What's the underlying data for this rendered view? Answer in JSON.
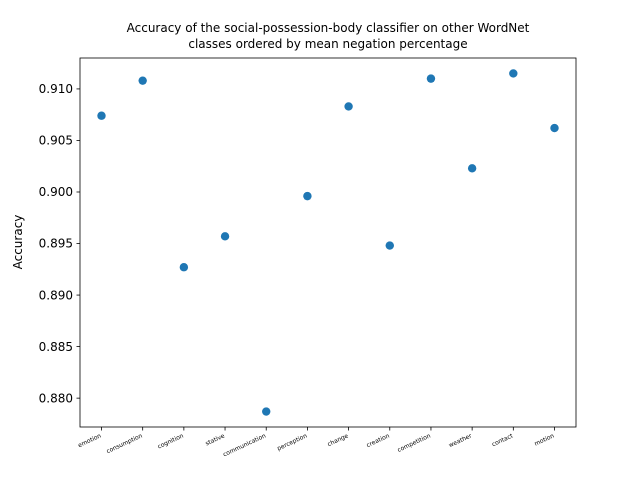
{
  "chart_data": {
    "type": "scatter",
    "title": [
      "Accuracy of the social-possession-body classifier on other WordNet",
      "classes ordered by mean negation percentage"
    ],
    "xlabel": "",
    "ylabel": "Accuracy",
    "categories": [
      "emotion",
      "consumption",
      "cognition",
      "stative",
      "communication",
      "perception",
      "change",
      "creation",
      "competition",
      "weather",
      "contact",
      "motion"
    ],
    "values": [
      0.9074,
      0.9108,
      0.8927,
      0.8957,
      0.8787,
      0.8996,
      0.9083,
      0.8948,
      0.911,
      0.9023,
      0.9115,
      0.9062
    ],
    "ylim": [
      0.8772,
      0.913
    ],
    "yticks": [
      0.88,
      0.885,
      0.89,
      0.895,
      0.9,
      0.905,
      0.91
    ],
    "ytick_labels": [
      "0.880",
      "0.885",
      "0.890",
      "0.895",
      "0.900",
      "0.905",
      "0.910"
    ],
    "marker_color": "#1f77b4",
    "grid": false,
    "legend": "none"
  }
}
